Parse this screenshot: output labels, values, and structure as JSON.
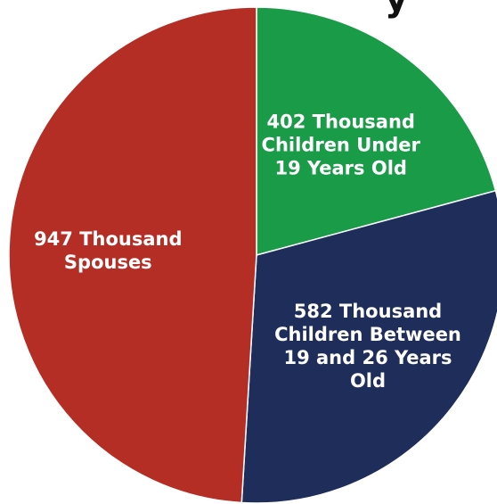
{
  "chart_data": {
    "type": "pie",
    "title_fragment": "y",
    "slices": [
      {
        "name": "Children Under 19 Years Old",
        "value": 402,
        "color": "#1a9b48",
        "label_lines": [
          "402 Thousand",
          "Children Under",
          "19 Years Old"
        ]
      },
      {
        "name": "Children Between 19 and 26 Years Old",
        "value": 582,
        "color": "#1f2d5a",
        "label_lines": [
          "582 Thousand",
          "Children Between",
          "19 and 26 Years",
          "Old"
        ]
      },
      {
        "name": "Spouses",
        "value": 947,
        "color": "#b52e26",
        "label_lines": [
          "947 Thousand",
          "Spouses"
        ]
      }
    ],
    "unit": "Thousand"
  }
}
